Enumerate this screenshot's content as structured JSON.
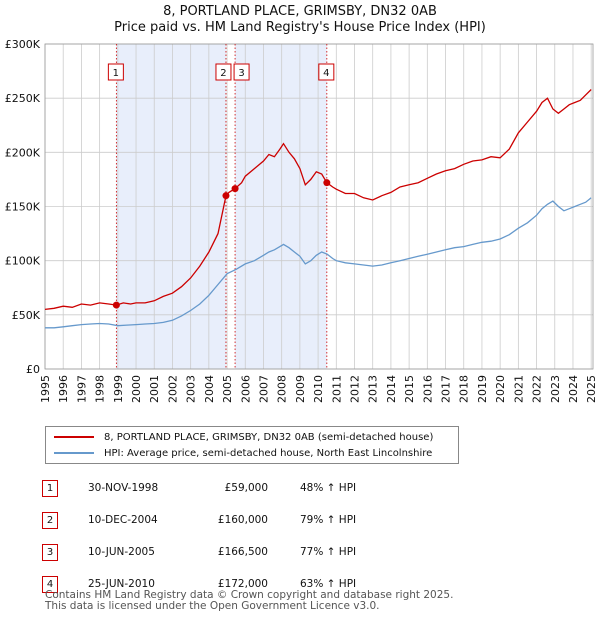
{
  "title_line1": "8, PORTLAND PLACE, GRIMSBY, DN32 0AB",
  "title_line2": "Price paid vs. HM Land Registry's House Price Index (HPI)",
  "colors": {
    "property": "#cc0000",
    "hpi": "#6699cc",
    "shade": "#e8eefb",
    "grid": "#cccccc"
  },
  "chart_data": {
    "type": "line",
    "xlabel": "",
    "ylabel": "",
    "xlim": [
      1995,
      2025.1
    ],
    "ylim": [
      0,
      300000
    ],
    "yticks": [
      0,
      50000,
      100000,
      150000,
      200000,
      250000,
      300000
    ],
    "ytick_labels": [
      "£0",
      "£50K",
      "£100K",
      "£150K",
      "£200K",
      "£250K",
      "£300K"
    ],
    "xticks": [
      1995,
      1996,
      1997,
      1998,
      1999,
      2000,
      2001,
      2002,
      2003,
      2004,
      2005,
      2006,
      2007,
      2008,
      2009,
      2010,
      2011,
      2012,
      2013,
      2014,
      2015,
      2016,
      2017,
      2018,
      2019,
      2020,
      2021,
      2022,
      2023,
      2024,
      2025
    ],
    "xtick_labels": [
      "1995",
      "1996",
      "1997",
      "1998",
      "1999",
      "2000",
      "2001",
      "2002",
      "2003",
      "2004",
      "2005",
      "2006",
      "2007",
      "2008",
      "2009",
      "2010",
      "2011",
      "2012",
      "2013",
      "2014",
      "2015",
      "2016",
      "2017",
      "2018",
      "2019",
      "2020",
      "2021",
      "2022",
      "2023",
      "2024",
      "2025"
    ],
    "shaded_ranges": [
      [
        1998.92,
        2004.94
      ],
      [
        2005.44,
        2010.48
      ]
    ],
    "series": [
      {
        "name": "8, PORTLAND PLACE, GRIMSBY, DN32 0AB (semi-detached house)",
        "x": [
          1995,
          1995.5,
          1996,
          1996.5,
          1997,
          1997.5,
          1998,
          1998.5,
          1998.92,
          1999.3,
          1999.7,
          2000,
          2000.5,
          2001,
          2001.5,
          2002,
          2002.5,
          2003,
          2003.5,
          2004,
          2004.5,
          2004.94,
          2005.1,
          2005.44,
          2005.8,
          2006,
          2006.5,
          2007,
          2007.3,
          2007.6,
          2007.9,
          2008.1,
          2008.4,
          2008.7,
          2009.0,
          2009.3,
          2009.6,
          2009.9,
          2010.2,
          2010.48,
          2010.8,
          2011,
          2011.5,
          2012,
          2012.5,
          2013,
          2013.5,
          2014,
          2014.5,
          2015,
          2015.5,
          2016,
          2016.5,
          2017,
          2017.5,
          2018,
          2018.5,
          2019,
          2019.5,
          2020,
          2020.5,
          2021,
          2021.5,
          2022,
          2022.3,
          2022.6,
          2022.9,
          2023.2,
          2023.5,
          2023.8,
          2024.1,
          2024.4,
          2024.7,
          2025.0
        ],
        "y": [
          55000,
          56000,
          58000,
          57000,
          60000,
          59000,
          61000,
          60000,
          59000,
          61000,
          60000,
          61000,
          61000,
          63000,
          67000,
          70000,
          76000,
          84000,
          95000,
          108000,
          125000,
          160000,
          163000,
          166500,
          172000,
          178000,
          185000,
          192000,
          198000,
          196000,
          203000,
          208000,
          200000,
          194000,
          185000,
          170000,
          175000,
          182000,
          180000,
          172000,
          168000,
          166000,
          162000,
          162000,
          158000,
          156000,
          160000,
          163000,
          168000,
          170000,
          172000,
          176000,
          180000,
          183000,
          185000,
          189000,
          192000,
          193000,
          196000,
          195000,
          203000,
          218000,
          228000,
          238000,
          246000,
          250000,
          240000,
          236000,
          240000,
          244000,
          246000,
          248000,
          253000,
          258000
        ]
      },
      {
        "name": "HPI: Average price, semi-detached house, North East Lincolnshire",
        "x": [
          1995,
          1995.5,
          1996,
          1996.5,
          1997,
          1997.5,
          1998,
          1998.5,
          1999,
          1999.5,
          2000,
          2000.5,
          2001,
          2001.5,
          2002,
          2002.5,
          2003,
          2003.5,
          2004,
          2004.5,
          2005,
          2005.5,
          2006,
          2006.5,
          2007,
          2007.3,
          2007.6,
          2007.9,
          2008.1,
          2008.4,
          2008.7,
          2009.0,
          2009.3,
          2009.6,
          2009.9,
          2010.2,
          2010.5,
          2010.8,
          2011,
          2011.5,
          2012,
          2012.5,
          2013,
          2013.5,
          2014,
          2014.5,
          2015,
          2015.5,
          2016,
          2016.5,
          2017,
          2017.5,
          2018,
          2018.5,
          2019,
          2019.5,
          2020,
          2020.5,
          2021,
          2021.5,
          2022,
          2022.3,
          2022.6,
          2022.9,
          2023.2,
          2023.5,
          2023.8,
          2024.1,
          2024.4,
          2024.7,
          2025.0
        ],
        "y": [
          38000,
          38000,
          39000,
          40000,
          41000,
          41500,
          42000,
          41500,
          40000,
          40500,
          41000,
          41500,
          42000,
          43000,
          45000,
          49000,
          54000,
          60000,
          68000,
          78000,
          88000,
          92000,
          97000,
          100000,
          105000,
          108000,
          110000,
          113000,
          115000,
          112000,
          108000,
          104000,
          97000,
          100000,
          105000,
          108000,
          106000,
          102000,
          100000,
          98000,
          97000,
          96000,
          95000,
          96000,
          98000,
          100000,
          102000,
          104000,
          106000,
          108000,
          110000,
          112000,
          113000,
          115000,
          117000,
          118000,
          120000,
          124000,
          130000,
          135000,
          142000,
          148000,
          152000,
          155000,
          150000,
          146000,
          148000,
          150000,
          152000,
          154000,
          158000
        ]
      }
    ],
    "sales": [
      {
        "label": "1",
        "x": 1998.92,
        "y": 59000
      },
      {
        "label": "2",
        "x": 2004.94,
        "y": 160000
      },
      {
        "label": "3",
        "x": 2005.44,
        "y": 166500
      },
      {
        "label": "4",
        "x": 2010.48,
        "y": 172000
      }
    ]
  },
  "legend": {
    "property_label": "8, PORTLAND PLACE, GRIMSBY, DN32 0AB (semi-detached house)",
    "hpi_label": "HPI: Average price, semi-detached house, North East Lincolnshire"
  },
  "transactions": [
    {
      "num": "1",
      "date": "30-NOV-1998",
      "price": "£59,000",
      "hpi": "48% ↑ HPI"
    },
    {
      "num": "2",
      "date": "10-DEC-2004",
      "price": "£160,000",
      "hpi": "79% ↑ HPI"
    },
    {
      "num": "3",
      "date": "10-JUN-2005",
      "price": "£166,500",
      "hpi": "77% ↑ HPI"
    },
    {
      "num": "4",
      "date": "25-JUN-2010",
      "price": "£172,000",
      "hpi": "63% ↑ HPI"
    }
  ],
  "footer_line1": "Contains HM Land Registry data © Crown copyright and database right 2025.",
  "footer_line2": "This data is licensed under the Open Government Licence v3.0."
}
